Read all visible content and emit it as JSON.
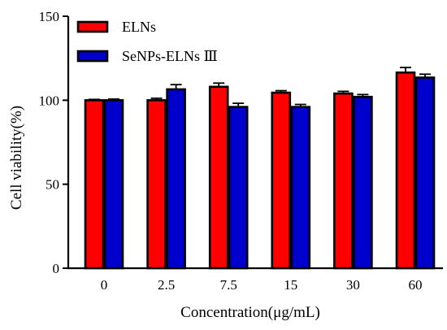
{
  "chart_data": {
    "type": "bar",
    "categories": [
      "0",
      "2.5",
      "7.5",
      "15",
      "30",
      "60"
    ],
    "series": [
      {
        "name": "ELNs",
        "color": "#ff0000",
        "values": [
          100,
          100,
          108,
          104.5,
          104,
          116.5
        ],
        "errors": [
          0.5,
          1.2,
          2.2,
          1.2,
          1.3,
          3.0
        ]
      },
      {
        "name": "SeNPs-ELNs Ⅲ",
        "color": "#0000cc",
        "values": [
          100,
          106.5,
          96,
          96,
          102,
          113.5
        ],
        "errors": [
          0.7,
          2.8,
          2.2,
          1.5,
          1.4,
          2.0
        ]
      }
    ],
    "xlabel": "Concentration(μg/mL)",
    "ylabel": "Cell viability(%)",
    "ylim": [
      0,
      150
    ],
    "yticks": [
      0,
      50,
      100,
      150
    ],
    "legend_position": "top-left",
    "grid": false
  }
}
